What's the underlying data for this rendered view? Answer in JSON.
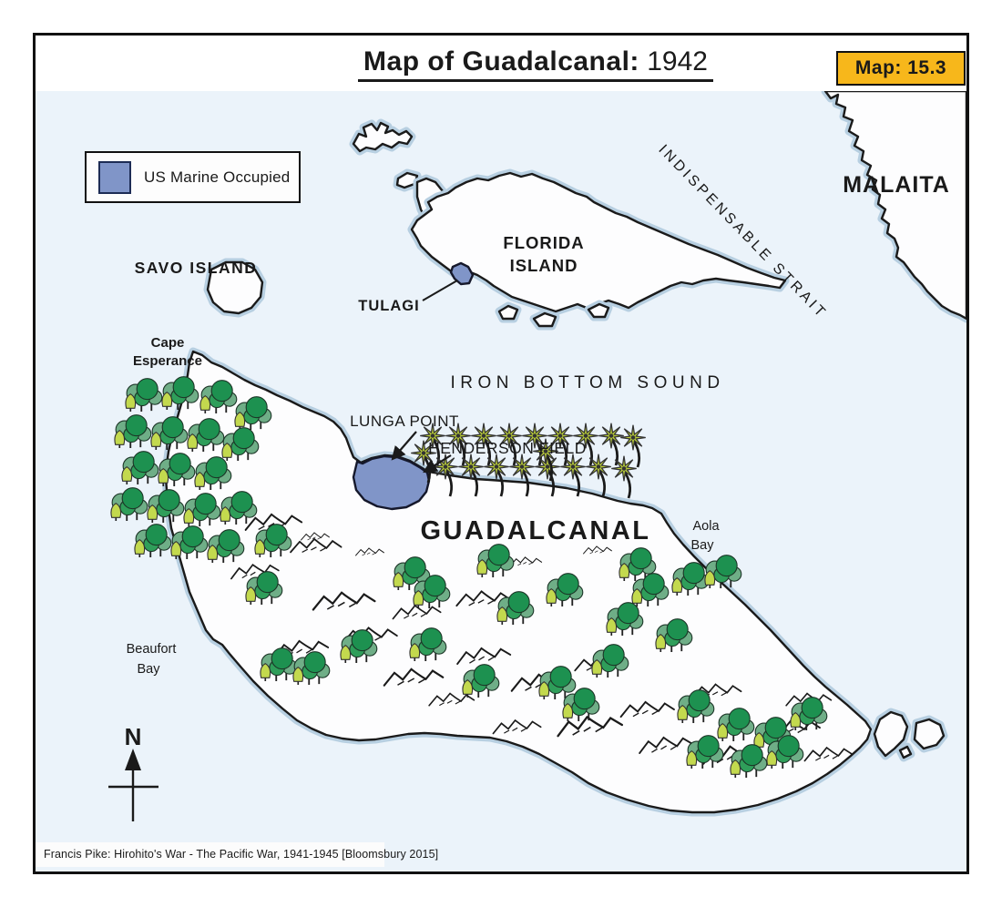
{
  "title": {
    "main": "Map of Guadalcanal:",
    "year": " 1942"
  },
  "badge": {
    "label": "Map: 15.3"
  },
  "legend": {
    "label": "US Marine Occupied"
  },
  "labels": {
    "savo_island": "SAVO ISLAND",
    "cape_esperance_line1": "Cape",
    "cape_esperance_line2": "Esperance",
    "florida_line1": "FLORIDA",
    "florida_line2": "ISLAND",
    "tulagi": "TULAGI",
    "indispensable_strait": "INDISPENSABLE STRAIT",
    "malaita": "MALAITA",
    "iron_bottom_sound": "IRON BOTTOM SOUND",
    "lunga_point": "LUNGA POINT",
    "henderson_field": "HENDERSON FIELD",
    "guadalcanal": "GUADALCANAL",
    "aola_bay_line1": "Aola",
    "aola_bay_line2": "Bay",
    "beaufort_bay_line1": "Beaufort",
    "beaufort_bay_line2": "Bay",
    "compass_north": "N"
  },
  "footer": {
    "source": "Francis Pike:  Hirohito's War - The Pacific War, 1941-1945   [Bloomsbury 2015]"
  },
  "colors": {
    "water": "#ebf3fa",
    "shore_halo": "#b7cfe1",
    "island_fill": "#fdfdfe",
    "outline": "#1a1a1a",
    "marine_occupied": "#8095c8",
    "badge_gold": "#f7b71b",
    "tree_dark_green": "#1d9150",
    "tree_light_green": "#6fae87",
    "bush_yellow_green": "#c3d94e",
    "palm_green": "#b9cc3a"
  }
}
